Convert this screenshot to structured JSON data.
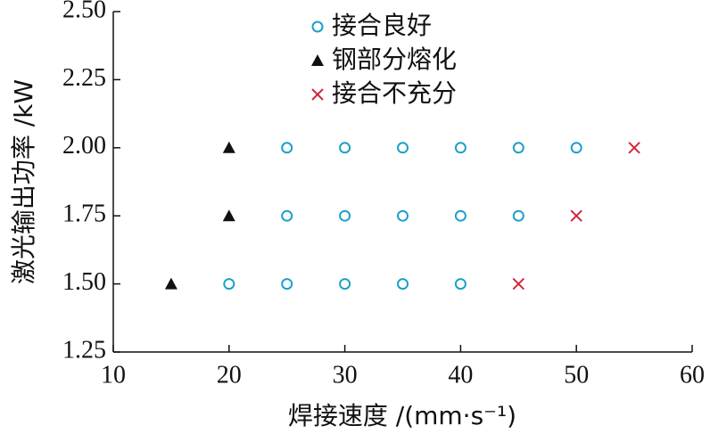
{
  "chart_data": {
    "type": "scatter",
    "x_label": "焊接速度 /(mm·s⁻¹)",
    "y_label": "激光输出功率 /kW",
    "xlim": [
      10,
      60
    ],
    "xticks": [
      10,
      20,
      30,
      40,
      50,
      60
    ],
    "ylim": [
      1.25,
      2.5
    ],
    "yticks": [
      1.25,
      {
        "value": 1.5,
        "label": "1.50"
      },
      1.75,
      {
        "value": 2,
        "label": "2.00"
      },
      2.25,
      {
        "value": 2.5,
        "label": "2.50"
      }
    ],
    "legend": "upper left",
    "series": [
      {
        "name": "接合良好",
        "color": "#1aa0c8",
        "marker": "circle",
        "x": [
          20,
          25,
          30,
          35,
          40,
          25,
          30,
          35,
          40,
          45,
          25,
          30,
          35,
          40,
          45,
          50
        ],
        "values": [
          1.5,
          1.5,
          1.5,
          1.5,
          1.5,
          1.75,
          1.75,
          1.75,
          1.75,
          1.75,
          2,
          2,
          2,
          2,
          2,
          2
        ]
      },
      {
        "name": "钢部分熔化",
        "color": "#111111",
        "marker": "triangle",
        "x": [
          15,
          20,
          20
        ],
        "values": [
          1.5,
          1.75,
          2
        ]
      },
      {
        "name": "接合不充分",
        "color": "#d0283a",
        "marker": "cross",
        "x": [
          45,
          50,
          55
        ],
        "values": [
          1.5,
          1.75,
          2
        ]
      }
    ]
  }
}
